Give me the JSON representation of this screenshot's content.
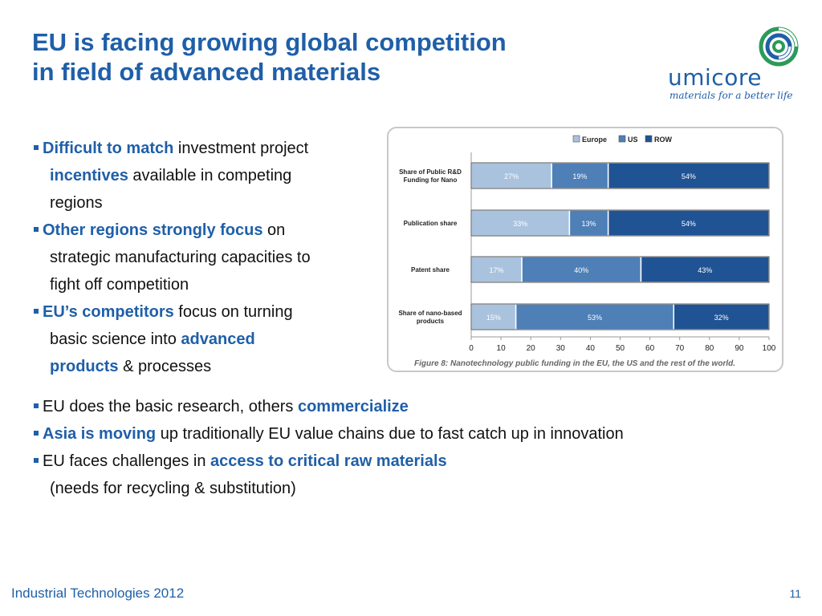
{
  "slide": {
    "title_line1": "EU is facing growing global competition",
    "title_line2": "in field of advanced materials",
    "footer": "Industrial Technologies 2012",
    "page_number": "11"
  },
  "logo": {
    "name": "umicore",
    "tagline": "materials for a better life",
    "icon": "umicore-swirl-icon"
  },
  "left_bullets": [
    {
      "lines": [
        [
          {
            "t": "Difficult to match",
            "hl": true
          },
          {
            "t": " investment project",
            "hl": false
          }
        ],
        [
          {
            "t": "incentives",
            "hl": true
          },
          {
            "t": " available in competing",
            "hl": false
          }
        ],
        [
          {
            "t": "regions",
            "hl": false
          }
        ]
      ]
    },
    {
      "lines": [
        [
          {
            "t": "Other regions strongly focus",
            "hl": true
          },
          {
            "t": " on",
            "hl": false
          }
        ],
        [
          {
            "t": "strategic manufacturing capacities to",
            "hl": false
          }
        ],
        [
          {
            "t": "fight off competition",
            "hl": false
          }
        ]
      ]
    },
    {
      "lines": [
        [
          {
            "t": "EU’s competitors",
            "hl": true
          },
          {
            "t": " focus on turning",
            "hl": false
          }
        ],
        [
          {
            "t": "basic science into ",
            "hl": false
          },
          {
            "t": "advanced",
            "hl": true
          }
        ],
        [
          {
            "t": "products",
            "hl": true
          },
          {
            "t": " & processes",
            "hl": false
          }
        ]
      ]
    }
  ],
  "bottom_bullets": [
    {
      "lines": [
        [
          {
            "t": "EU does the basic research, others ",
            "hl": false
          },
          {
            "t": "commercialize",
            "hl": true
          }
        ]
      ]
    },
    {
      "lines": [
        [
          {
            "t": "Asia is moving",
            "hl": true
          },
          {
            "t": " up traditionally EU value chains due to fast catch up in innovation",
            "hl": false
          }
        ]
      ]
    },
    {
      "lines": [
        [
          {
            "t": "EU faces challenges in ",
            "hl": false
          },
          {
            "t": "access to critical raw materials",
            "hl": true
          }
        ],
        [
          {
            "t": "(needs for recycling & substitution)",
            "hl": false
          }
        ]
      ]
    }
  ],
  "chart_data": {
    "type": "bar",
    "stacked": true,
    "orientation": "horizontal",
    "categories": [
      [
        "Share of Public R&D",
        "Funding for Nano"
      ],
      [
        "Publication share"
      ],
      [
        "Patent share"
      ],
      [
        "Share of nano-based",
        "products"
      ]
    ],
    "series": [
      {
        "name": "Europe",
        "values": [
          27,
          33,
          17,
          15
        ],
        "color": "#a9c2de"
      },
      {
        "name": "US",
        "values": [
          19,
          13,
          40,
          53
        ],
        "color": "#4e7fb6"
      },
      {
        "name": "ROW",
        "values": [
          54,
          54,
          43,
          32
        ],
        "color": "#1f5394"
      }
    ],
    "value_suffix": "%",
    "xlim": [
      0,
      100
    ],
    "xticks": [
      0,
      10,
      20,
      30,
      40,
      50,
      60,
      70,
      80,
      90,
      100
    ],
    "legend_position": "top",
    "caption": "Figure 8: Nanotechnology public funding in the EU, the US and the rest of the world."
  }
}
